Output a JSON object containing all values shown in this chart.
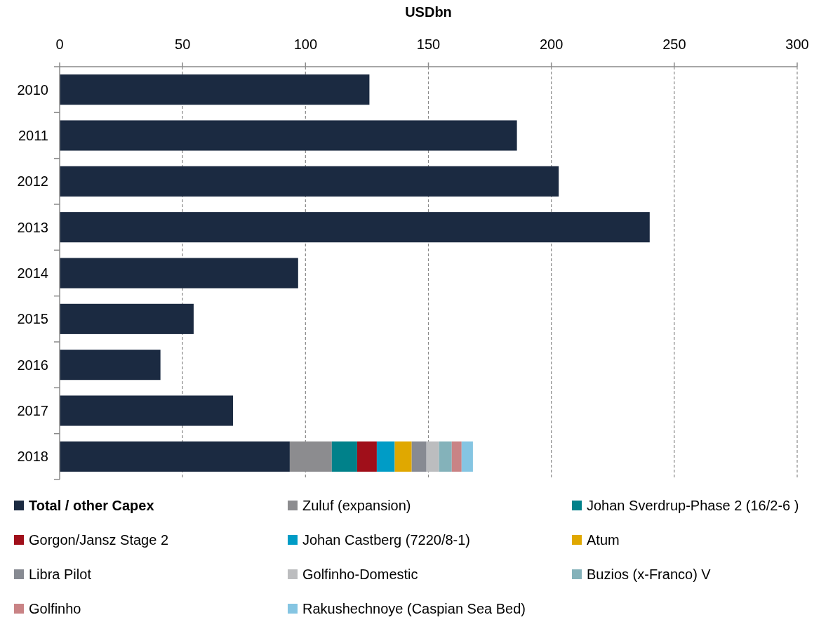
{
  "chart_data": {
    "type": "bar",
    "orientation": "horizontal",
    "stacked": true,
    "xlabel": "USDbn",
    "categories": [
      "2010",
      "2011",
      "2012",
      "2013",
      "2014",
      "2015",
      "2016",
      "2017",
      "2018"
    ],
    "xlim": [
      0,
      300
    ],
    "xticks": [
      0,
      50,
      100,
      150,
      200,
      250,
      300
    ],
    "grid": "x",
    "legend": "bottom",
    "series": [
      {
        "name": "Total / other Capex",
        "color": "#1b2a41",
        "values": [
          126,
          186,
          203,
          240,
          97,
          54.5,
          41,
          70.5,
          93.6
        ]
      },
      {
        "name": "Zuluf (expansion)",
        "color": "#8c8c8f",
        "values": [
          null,
          null,
          null,
          null,
          null,
          null,
          null,
          null,
          17.1
        ]
      },
      {
        "name": "Johan Sverdrup-Phase 2 (16/2-6 )",
        "color": "#00818a",
        "values": [
          null,
          null,
          null,
          null,
          null,
          null,
          null,
          null,
          10.3
        ]
      },
      {
        "name": "Gorgon/Jansz Stage 2",
        "color": "#a00f1a",
        "values": [
          null,
          null,
          null,
          null,
          null,
          null,
          null,
          null,
          8.0
        ]
      },
      {
        "name": "Johan Castberg (7220/8-1)",
        "color": "#009cc6",
        "values": [
          null,
          null,
          null,
          null,
          null,
          null,
          null,
          null,
          7.3
        ]
      },
      {
        "name": "Atum",
        "color": "#e0a800",
        "values": [
          null,
          null,
          null,
          null,
          null,
          null,
          null,
          null,
          6.9
        ]
      },
      {
        "name": "Libra Pilot",
        "color": "#878a92",
        "values": [
          null,
          null,
          null,
          null,
          null,
          null,
          null,
          null,
          6.0
        ]
      },
      {
        "name": "Golfinho-Domestic",
        "color": "#bcbdbf",
        "values": [
          null,
          null,
          null,
          null,
          null,
          null,
          null,
          null,
          5.1
        ]
      },
      {
        "name": "Buzios (x-Franco) V",
        "color": "#84b2ba",
        "values": [
          null,
          null,
          null,
          null,
          null,
          null,
          null,
          null,
          5.2
        ]
      },
      {
        "name": "Golfinho",
        "color": "#c98385",
        "values": [
          null,
          null,
          null,
          null,
          null,
          null,
          null,
          null,
          4.0
        ]
      },
      {
        "name": "Rakushechnoye (Caspian Sea Bed)",
        "color": "#85c5e2",
        "values": [
          null,
          null,
          null,
          null,
          null,
          null,
          null,
          null,
          4.6
        ]
      }
    ]
  }
}
